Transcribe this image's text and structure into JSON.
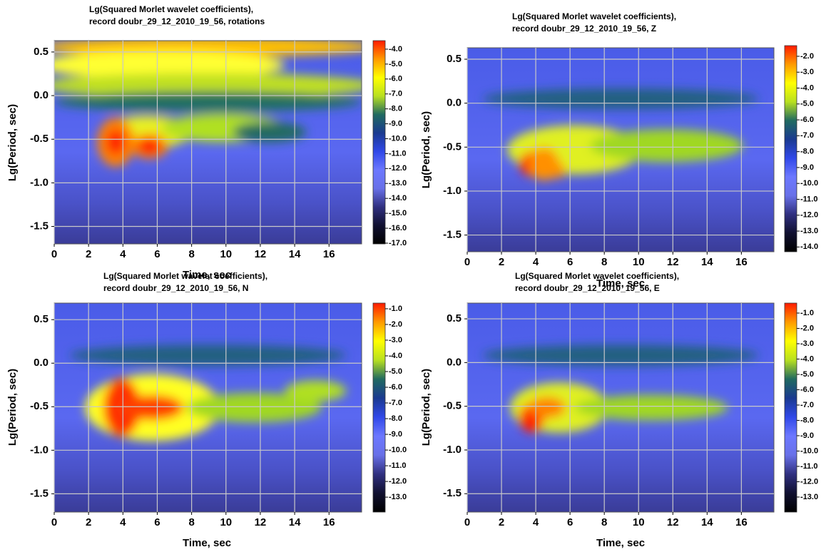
{
  "chart_data": [
    {
      "type": "heatmap",
      "title": [
        "Lg(Squared Morlet wavelet coefficients),",
        "record doubr_29_12_2010_19_56, rotations"
      ],
      "xlabel": "Time, sec",
      "ylabel": "Lg(Period, sec)",
      "xlim": [
        0,
        17.9
      ],
      "xticks": [
        0,
        2,
        4,
        6,
        8,
        10,
        12,
        14,
        16
      ],
      "ylim": [
        -1.7,
        0.63
      ],
      "yticks": [
        0.5,
        {
          "value": 0,
          "label": "0.0"
        },
        -0.5,
        {
          "value": -1,
          "label": "-1.0"
        },
        -1.5
      ],
      "grid": true,
      "colormap": [
        "#ff1a00",
        "#ff9a00",
        "#ffff00",
        "#b8e020",
        "#206a60",
        "#1a3a90",
        "#3048e8",
        "#6c78ff",
        "#6870e8",
        "#303080",
        "#101030",
        "#000000"
      ],
      "clim": [
        -17.05,
        -3.43
      ],
      "cticks": [
        {
          "value": -4,
          "label": "-4.0"
        },
        {
          "value": -5,
          "label": "-5.0"
        },
        {
          "value": -6,
          "label": "-6.0"
        },
        {
          "value": -7,
          "label": "-7.0"
        },
        {
          "value": -8,
          "label": "-8.0"
        },
        {
          "value": -9,
          "label": "-9.0"
        },
        {
          "value": -10,
          "label": "-10.0"
        },
        {
          "value": -11,
          "label": "-11.0"
        },
        {
          "value": -12,
          "label": "-12.0"
        },
        {
          "value": -13,
          "label": "-13.0"
        },
        {
          "value": -14,
          "label": "-14.0"
        },
        {
          "value": -15,
          "label": "-15.0"
        },
        {
          "value": -16,
          "label": "-16.0"
        },
        {
          "value": -17,
          "label": "-17.0"
        }
      ]
    },
    {
      "type": "heatmap",
      "title": [
        "Lg(Squared Morlet wavelet coefficients),",
        "record doubr_29_12_2010_19_56, Z"
      ],
      "xlabel": "Time, sec",
      "ylabel": "Lg(Period, sec)",
      "xlim": [
        0,
        17.9
      ],
      "xticks": [
        0,
        2,
        4,
        6,
        8,
        10,
        12,
        14,
        16
      ],
      "ylim": [
        -1.69,
        0.63
      ],
      "yticks": [
        0.5,
        {
          "value": 0,
          "label": "0.0"
        },
        -0.5,
        {
          "value": -1,
          "label": "-1.0"
        },
        -1.5
      ],
      "grid": true,
      "colormap": [
        "#ff1a00",
        "#ff9a00",
        "#ffff00",
        "#b8e020",
        "#206a60",
        "#1a3a90",
        "#3048e8",
        "#6c78ff",
        "#6870e8",
        "#303080",
        "#101030",
        "#000000"
      ],
      "clim": [
        -14.3,
        -1.33
      ],
      "cticks": [
        {
          "value": -2,
          "label": "-2.0"
        },
        {
          "value": -3,
          "label": "-3.0"
        },
        {
          "value": -4,
          "label": "-4.0"
        },
        {
          "value": -5,
          "label": "-5.0"
        },
        {
          "value": -6,
          "label": "-6.0"
        },
        {
          "value": -7,
          "label": "-7.0"
        },
        {
          "value": -8,
          "label": "-8.0"
        },
        {
          "value": -9,
          "label": "-9.0"
        },
        {
          "value": -10,
          "label": "-10.0"
        },
        {
          "value": -11,
          "label": "-11.0"
        },
        {
          "value": -12,
          "label": "-12.0"
        },
        {
          "value": -13,
          "label": "-13.0"
        },
        {
          "value": -14,
          "label": "-14.0"
        }
      ]
    },
    {
      "type": "heatmap",
      "title": [
        "Lg(Squared Morlet wavelet coefficients),",
        "record doubr_29_12_2010_19_56, N"
      ],
      "xlabel": "Time, sec",
      "ylabel": "Lg(Period, sec)",
      "xlim": [
        0,
        17.9
      ],
      "xticks": [
        0,
        2,
        4,
        6,
        8,
        10,
        12,
        14,
        16
      ],
      "ylim": [
        -1.71,
        0.69
      ],
      "yticks": [
        0.5,
        {
          "value": 0,
          "label": "0.0"
        },
        -0.5,
        {
          "value": -1,
          "label": "-1.0"
        },
        -1.5
      ],
      "grid": true,
      "colormap": [
        "#ff1a00",
        "#ff9a00",
        "#ffff00",
        "#b8e020",
        "#206a60",
        "#1a3a90",
        "#3048e8",
        "#6c78ff",
        "#6870e8",
        "#303080",
        "#101030",
        "#000000"
      ],
      "clim": [
        -13.95,
        -0.64
      ],
      "cticks": [
        {
          "value": -1,
          "label": "-1.0"
        },
        {
          "value": -2,
          "label": "-2.0"
        },
        {
          "value": -3,
          "label": "-3.0"
        },
        {
          "value": -4,
          "label": "-4.0"
        },
        {
          "value": -5,
          "label": "-5.0"
        },
        {
          "value": -6,
          "label": "-6.0"
        },
        {
          "value": -7,
          "label": "-7.0"
        },
        {
          "value": -8,
          "label": "-8.0"
        },
        {
          "value": -9,
          "label": "-9.0"
        },
        {
          "value": -10,
          "label": "-10.0"
        },
        {
          "value": -11,
          "label": "-11.0"
        },
        {
          "value": -12,
          "label": "-12.0"
        },
        {
          "value": -13,
          "label": "-13.0"
        }
      ]
    },
    {
      "type": "heatmap",
      "title": [
        "Lg(Squared Morlet wavelet coefficients),",
        "record doubr_29_12_2010_19_56, E"
      ],
      "xlabel": "Time, sec",
      "ylabel": "Lg(Period, sec)",
      "xlim": [
        0,
        17.9
      ],
      "xticks": [
        0,
        2,
        4,
        6,
        8,
        10,
        12,
        14,
        16
      ],
      "ylim": [
        -1.71,
        0.68
      ],
      "yticks": [
        0.5,
        {
          "value": 0,
          "label": "0.0"
        },
        -0.5,
        {
          "value": -1,
          "label": "-1.0"
        },
        -1.5
      ],
      "grid": true,
      "colormap": [
        "#ff1a00",
        "#ff9a00",
        "#ffff00",
        "#b8e020",
        "#206a60",
        "#1a3a90",
        "#3048e8",
        "#6c78ff",
        "#6870e8",
        "#303080",
        "#101030",
        "#000000"
      ],
      "clim": [
        -13.98,
        -0.35
      ],
      "cticks": [
        {
          "value": -1,
          "label": "-1.0"
        },
        {
          "value": -2,
          "label": "-2.0"
        },
        {
          "value": -3,
          "label": "-3.0"
        },
        {
          "value": -4,
          "label": "-4.0"
        },
        {
          "value": -5,
          "label": "-5.0"
        },
        {
          "value": -6,
          "label": "-6.0"
        },
        {
          "value": -7,
          "label": "-7.0"
        },
        {
          "value": -8,
          "label": "-8.0"
        },
        {
          "value": -9,
          "label": "-9.0"
        },
        {
          "value": -10,
          "label": "-10.0"
        },
        {
          "value": -11,
          "label": "-11.0"
        },
        {
          "value": -12,
          "label": "-12.0"
        },
        {
          "value": -13,
          "label": "-13.0"
        }
      ]
    }
  ]
}
